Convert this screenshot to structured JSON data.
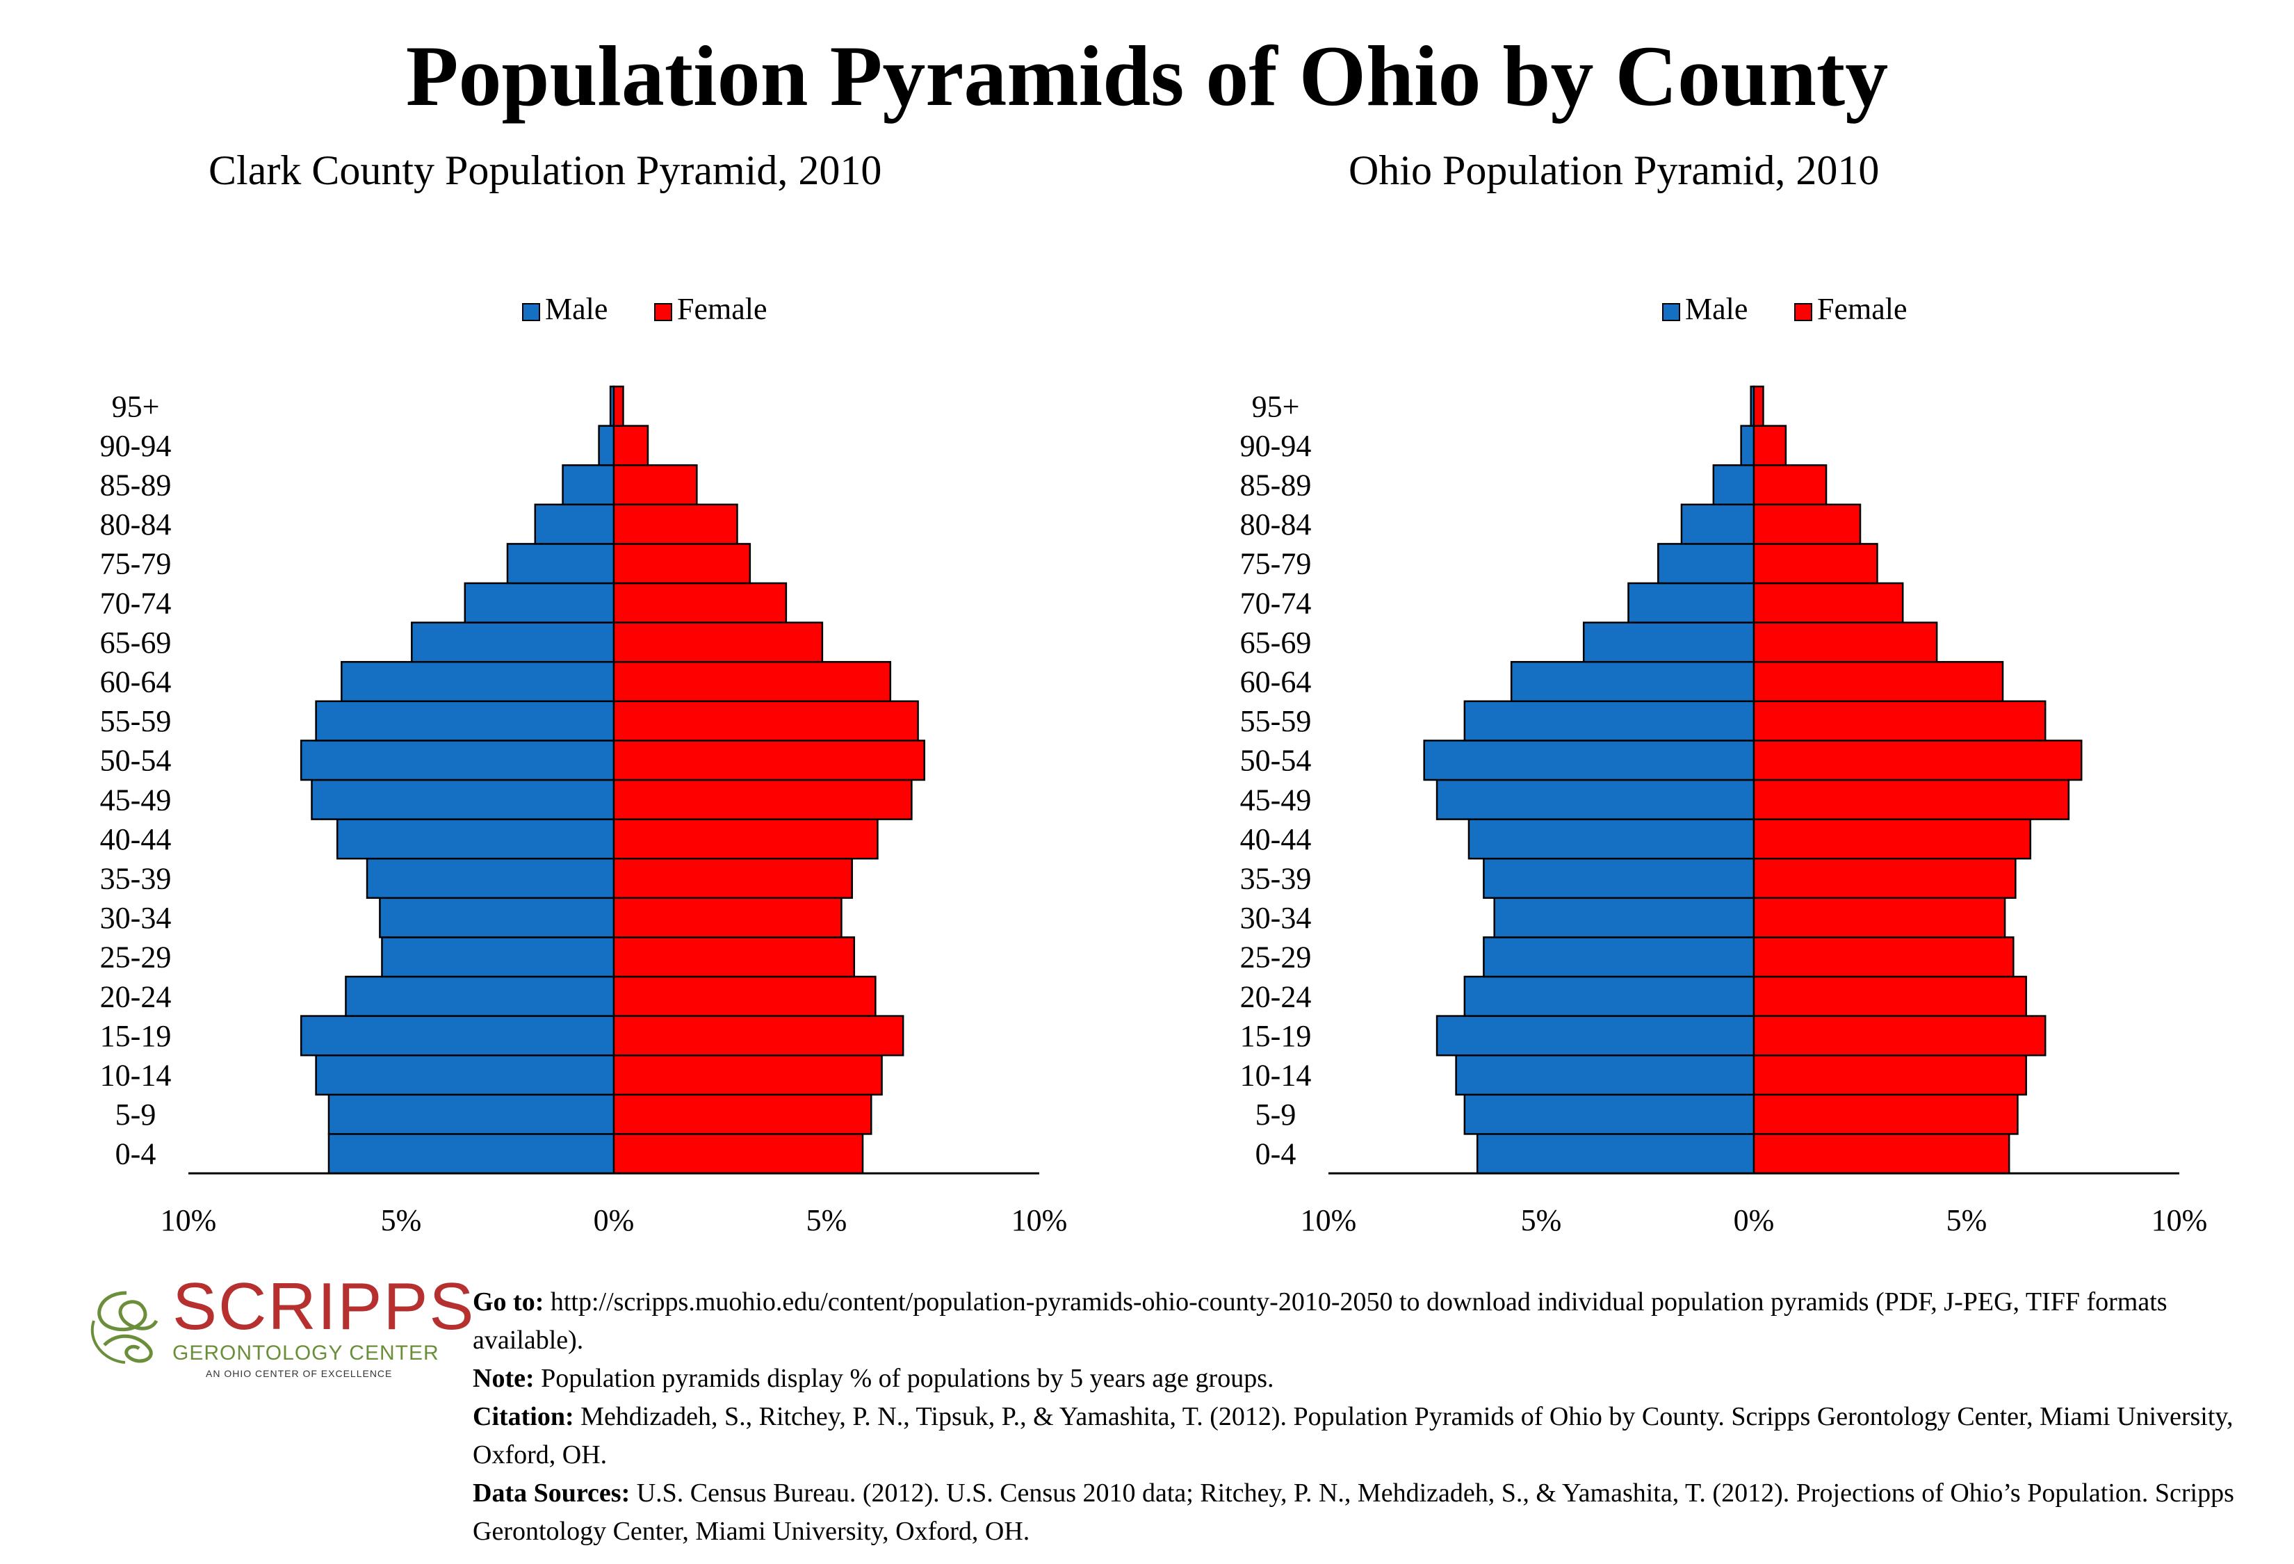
{
  "title": "Population Pyramids of Ohio by County",
  "colors": {
    "male": "#1570C3",
    "female": "#FF0000"
  },
  "chart_data": [
    {
      "type": "bar",
      "orientation": "horizontal-pyramid",
      "title": "Clark County Population Pyramid, 2010",
      "categories": [
        "0-4",
        "5-9",
        "10-14",
        "15-19",
        "20-24",
        "25-29",
        "30-34",
        "35-39",
        "40-44",
        "45-49",
        "50-54",
        "55-59",
        "60-64",
        "65-69",
        "70-74",
        "75-79",
        "80-84",
        "85-89",
        "90-94",
        "95+"
      ],
      "series": [
        {
          "name": "Male",
          "values": [
            6.7,
            6.7,
            7.0,
            7.35,
            6.3,
            5.45,
            5.5,
            5.8,
            6.5,
            7.1,
            7.35,
            7.0,
            6.4,
            4.75,
            3.5,
            2.5,
            1.85,
            1.2,
            0.35,
            0.08
          ]
        },
        {
          "name": "Female",
          "values": [
            5.85,
            6.05,
            6.3,
            6.8,
            6.15,
            5.65,
            5.35,
            5.6,
            6.2,
            7.0,
            7.3,
            7.15,
            6.5,
            4.9,
            4.05,
            3.2,
            2.9,
            1.95,
            0.8,
            0.22
          ]
        }
      ],
      "legend": {
        "position": "top",
        "entries": [
          "Male",
          "Female"
        ]
      },
      "x_ticks": [
        "10%",
        "5%",
        "0%",
        "5%",
        "10%"
      ],
      "xlim": [
        -10,
        10
      ],
      "grid": false
    },
    {
      "type": "bar",
      "orientation": "horizontal-pyramid",
      "title": "Ohio Population Pyramid, 2010",
      "categories": [
        "0-4",
        "5-9",
        "10-14",
        "15-19",
        "20-24",
        "25-29",
        "30-34",
        "35-39",
        "40-44",
        "45-49",
        "50-54",
        "55-59",
        "60-64",
        "65-69",
        "70-74",
        "75-79",
        "80-84",
        "85-89",
        "90-94",
        "95+"
      ],
      "series": [
        {
          "name": "Male",
          "values": [
            6.5,
            6.8,
            7.0,
            7.45,
            6.8,
            6.35,
            6.1,
            6.35,
            6.7,
            7.45,
            7.75,
            6.8,
            5.7,
            4.0,
            2.95,
            2.25,
            1.7,
            0.95,
            0.3,
            0.07
          ]
        },
        {
          "name": "Female",
          "values": [
            6.0,
            6.2,
            6.4,
            6.85,
            6.4,
            6.1,
            5.9,
            6.15,
            6.5,
            7.4,
            7.7,
            6.85,
            5.85,
            4.3,
            3.5,
            2.9,
            2.5,
            1.7,
            0.75,
            0.22
          ]
        }
      ],
      "legend": {
        "position": "top",
        "entries": [
          "Male",
          "Female"
        ]
      },
      "x_ticks": [
        "10%",
        "5%",
        "0%",
        "5%",
        "10%"
      ],
      "xlim": [
        -10,
        10
      ],
      "grid": false
    }
  ],
  "logo": {
    "word": "SCRIPPS",
    "subtitle": "GERONTOLOGY CENTER",
    "tagline": "AN OHIO CENTER OF EXCELLENCE"
  },
  "footer": {
    "goto_label": "Go to:",
    "goto_text": "http://scripps.muohio.edu/content/population-pyramids-ohio-county-2010-2050 to download individual population pyramids (PDF, J-PEG, TIFF formats available).",
    "note_label": "Note:",
    "note_text": "Population pyramids display % of populations by 5 years age groups.",
    "citation_label": "Citation:",
    "citation_text": "Mehdizadeh, S., Ritchey, P. N., Tipsuk, P., & Yamashita, T. (2012). Population Pyramids of Ohio by County. Scripps Gerontology Center, Miami University, Oxford, OH.",
    "sources_label": "Data Sources:",
    "sources_text": "U.S. Census Bureau. (2012). U.S. Census 2010 data; Ritchey, P. N., Mehdizadeh, S., & Yamashita, T. (2012). Projections of Ohio’s Population. Scripps Gerontology Center, Miami University, Oxford, OH."
  }
}
